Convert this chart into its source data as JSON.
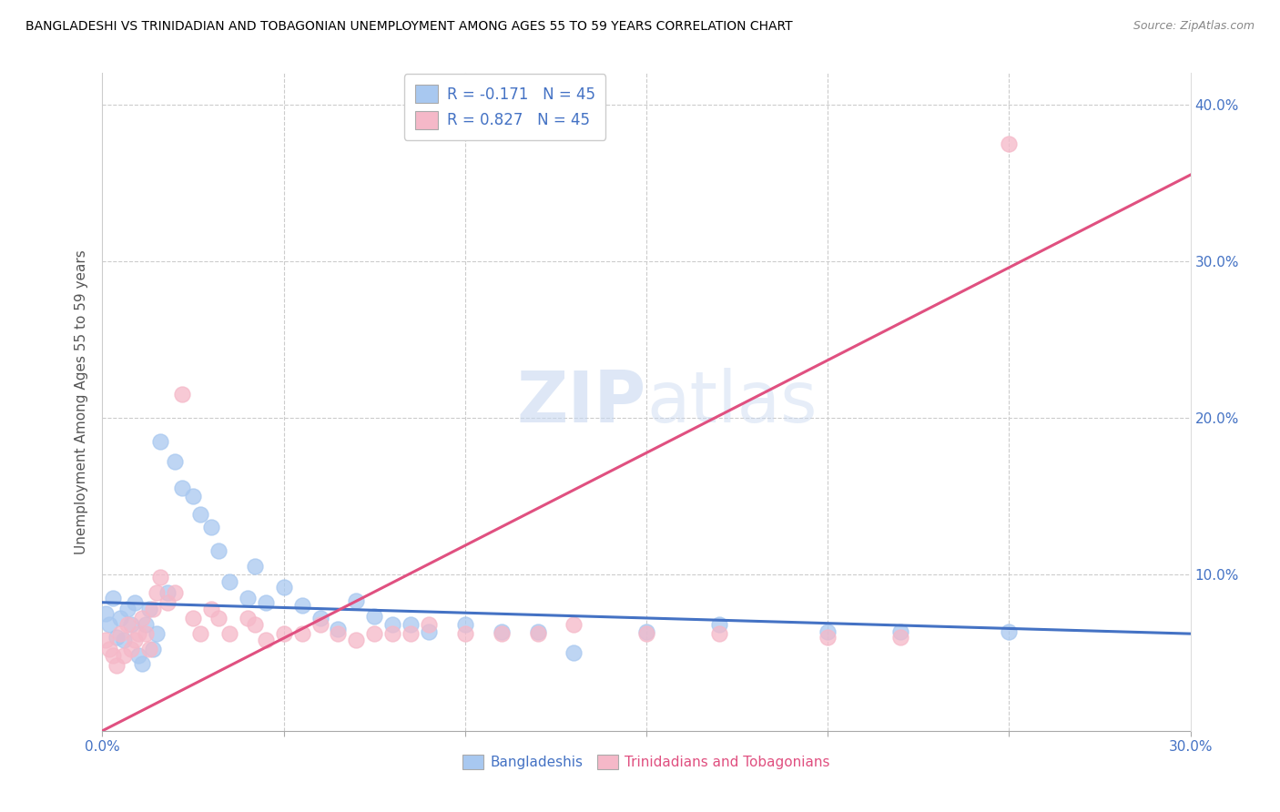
{
  "title": "BANGLADESHI VS TRINIDADIAN AND TOBAGONIAN UNEMPLOYMENT AMONG AGES 55 TO 59 YEARS CORRELATION CHART",
  "source": "Source: ZipAtlas.com",
  "ylabel": "Unemployment Among Ages 55 to 59 years",
  "legend_blue_label": "Bangladeshis",
  "legend_pink_label": "Trinidadians and Tobagonians",
  "r_blue": -0.171,
  "n_blue": 45,
  "r_pink": 0.827,
  "n_pink": 45,
  "blue_color": "#A8C8F0",
  "pink_color": "#F5B8C8",
  "blue_line_color": "#4472C4",
  "pink_line_color": "#E05080",
  "watermark_color": "#D0DCF0",
  "x_range": [
    0.0,
    0.3
  ],
  "y_range": [
    0.0,
    0.42
  ],
  "blue_intercept": 0.082,
  "blue_slope": -0.065,
  "pink_intercept": -0.01,
  "pink_slope": 1.18,
  "bangladeshi_x": [
    0.001,
    0.002,
    0.003,
    0.004,
    0.005,
    0.006,
    0.007,
    0.008,
    0.009,
    0.01,
    0.011,
    0.012,
    0.013,
    0.014,
    0.015,
    0.016,
    0.018,
    0.02,
    0.022,
    0.025,
    0.027,
    0.03,
    0.032,
    0.035,
    0.04,
    0.042,
    0.045,
    0.05,
    0.055,
    0.06,
    0.065,
    0.07,
    0.075,
    0.08,
    0.085,
    0.09,
    0.1,
    0.11,
    0.12,
    0.13,
    0.15,
    0.17,
    0.2,
    0.22,
    0.25
  ],
  "bangladeshi_y": [
    0.075,
    0.068,
    0.085,
    0.06,
    0.072,
    0.058,
    0.078,
    0.068,
    0.082,
    0.048,
    0.043,
    0.068,
    0.078,
    0.052,
    0.062,
    0.185,
    0.088,
    0.172,
    0.155,
    0.15,
    0.138,
    0.13,
    0.115,
    0.095,
    0.085,
    0.105,
    0.082,
    0.092,
    0.08,
    0.072,
    0.065,
    0.083,
    0.073,
    0.068,
    0.068,
    0.063,
    0.068,
    0.063,
    0.063,
    0.05,
    0.063,
    0.068,
    0.063,
    0.063,
    0.063
  ],
  "trinidadian_x": [
    0.001,
    0.002,
    0.003,
    0.004,
    0.005,
    0.006,
    0.007,
    0.008,
    0.009,
    0.01,
    0.011,
    0.012,
    0.013,
    0.014,
    0.015,
    0.016,
    0.018,
    0.02,
    0.022,
    0.025,
    0.027,
    0.03,
    0.032,
    0.035,
    0.04,
    0.042,
    0.045,
    0.05,
    0.055,
    0.06,
    0.065,
    0.07,
    0.075,
    0.08,
    0.085,
    0.09,
    0.1,
    0.11,
    0.12,
    0.13,
    0.15,
    0.17,
    0.2,
    0.22,
    0.25
  ],
  "trinidadian_y": [
    0.058,
    0.052,
    0.048,
    0.042,
    0.062,
    0.048,
    0.068,
    0.052,
    0.058,
    0.062,
    0.072,
    0.062,
    0.052,
    0.078,
    0.088,
    0.098,
    0.082,
    0.088,
    0.215,
    0.072,
    0.062,
    0.078,
    0.072,
    0.062,
    0.072,
    0.068,
    0.058,
    0.062,
    0.062,
    0.068,
    0.062,
    0.058,
    0.062,
    0.062,
    0.062,
    0.068,
    0.062,
    0.062,
    0.062,
    0.068,
    0.062,
    0.062,
    0.06,
    0.06,
    0.375
  ]
}
